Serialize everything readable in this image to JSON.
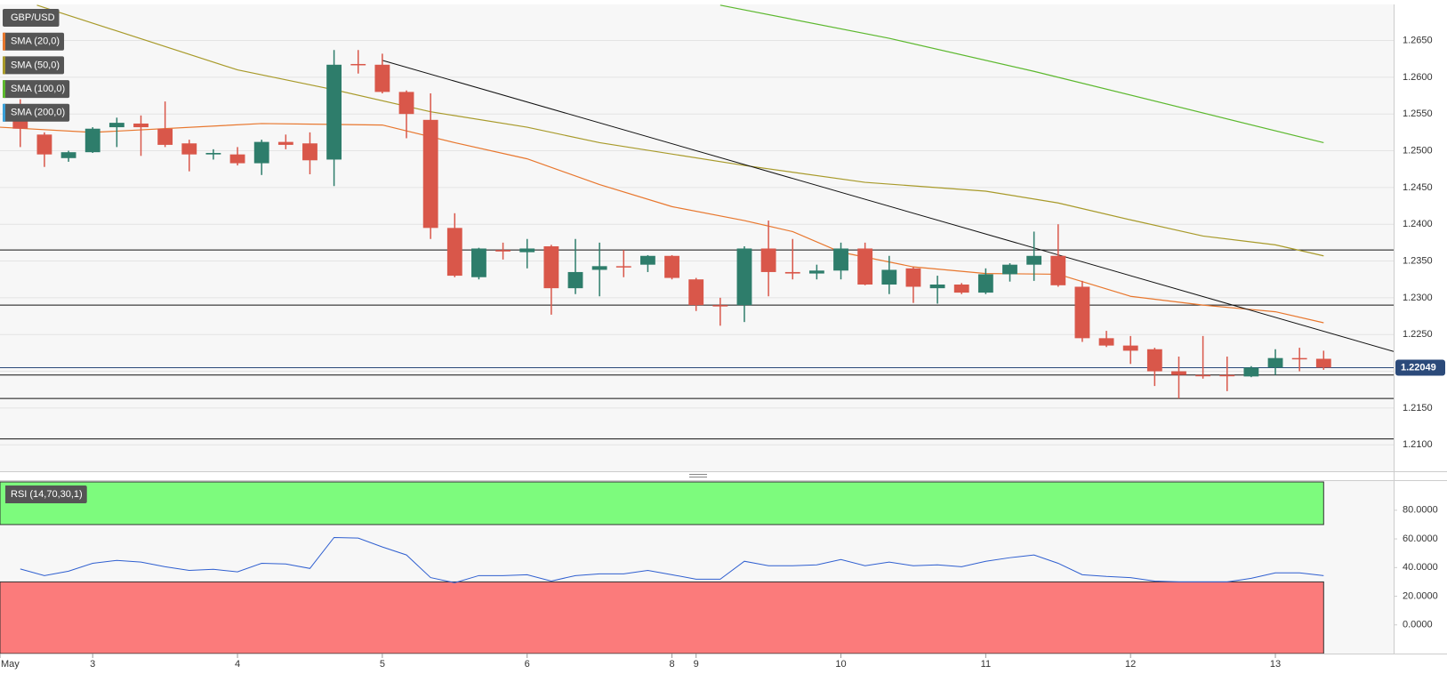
{
  "chart_data": [
    {
      "type": "candlestick",
      "title": "GBP/USD",
      "up_color": "#2e7d6b",
      "down_color": "#d9574a",
      "open": [
        1.256,
        1.2522,
        1.249,
        1.2498,
        1.2532,
        1.2537,
        1.253,
        1.251,
        1.2495,
        1.2495,
        1.2483,
        1.2512,
        1.251,
        1.2488,
        1.2618,
        1.2617,
        1.258,
        1.2542,
        1.2395,
        1.2328,
        1.2365,
        1.2362,
        1.237,
        1.2313,
        1.2338,
        1.2343,
        1.2345,
        1.2357,
        1.2325,
        1.229,
        1.229,
        1.2367,
        1.2335,
        1.2333,
        1.2337,
        1.2367,
        1.2318,
        1.234,
        1.2313,
        1.2318,
        1.2307,
        1.2332,
        1.2345,
        1.2357,
        1.2315,
        1.2245,
        1.2235,
        1.223,
        1.22,
        1.2195,
        1.2195,
        1.2193,
        1.2205,
        1.2218,
        1.2217
      ],
      "high": [
        1.257,
        1.2525,
        1.25,
        1.2532,
        1.2545,
        1.2548,
        1.2567,
        1.2515,
        1.2502,
        1.2505,
        1.2515,
        1.2522,
        1.2525,
        1.2637,
        1.2637,
        1.2632,
        1.2582,
        1.2578,
        1.2415,
        1.2368,
        1.2375,
        1.238,
        1.2372,
        1.238,
        1.2375,
        1.2365,
        1.2358,
        1.2358,
        1.2327,
        1.23,
        1.237,
        1.2405,
        1.238,
        1.2345,
        1.2375,
        1.2375,
        1.2357,
        1.2342,
        1.233,
        1.232,
        1.234,
        1.2347,
        1.239,
        1.24,
        1.2323,
        1.2255,
        1.2248,
        1.2232,
        1.222,
        1.2248,
        1.222,
        1.2207,
        1.223,
        1.2232,
        1.2228
      ],
      "low": [
        1.2505,
        1.2478,
        1.2485,
        1.2497,
        1.2505,
        1.2493,
        1.2505,
        1.2472,
        1.2488,
        1.248,
        1.2467,
        1.2502,
        1.2468,
        1.2452,
        1.2605,
        1.2578,
        1.2517,
        1.238,
        1.2328,
        1.2325,
        1.2352,
        1.234,
        1.2277,
        1.2305,
        1.2302,
        1.2328,
        1.2335,
        1.2325,
        1.2282,
        1.2262,
        1.2267,
        1.2302,
        1.2325,
        1.2325,
        1.2325,
        1.2317,
        1.2305,
        1.2293,
        1.2292,
        1.2305,
        1.2305,
        1.2322,
        1.2323,
        1.2315,
        1.224,
        1.2233,
        1.221,
        1.218,
        1.2163,
        1.219,
        1.2173,
        1.2192,
        1.2195,
        1.22,
        1.2202
      ],
      "close": [
        1.253,
        1.2495,
        1.2498,
        1.253,
        1.2538,
        1.2532,
        1.2508,
        1.2495,
        1.2497,
        1.2483,
        1.2512,
        1.2508,
        1.2487,
        1.2617,
        1.2617,
        1.258,
        1.255,
        1.2395,
        1.233,
        1.2367,
        1.2363,
        1.2367,
        1.2313,
        1.2335,
        1.2343,
        1.2343,
        1.2357,
        1.2327,
        1.229,
        1.229,
        1.2367,
        1.2335,
        1.2333,
        1.2337,
        1.2367,
        1.2318,
        1.2338,
        1.2315,
        1.2318,
        1.2307,
        1.2332,
        1.2345,
        1.2357,
        1.2317,
        1.2245,
        1.2235,
        1.2228,
        1.22,
        1.2195,
        1.2195,
        1.2195,
        1.2205,
        1.2218,
        1.2217,
        1.2205
      ],
      "indicators": [
        {
          "name": "SMA (20,0)",
          "color": "#e8772e",
          "x": [
            -0.84,
            3,
            10,
            15,
            18,
            21,
            24,
            27,
            30,
            32,
            34,
            37,
            40,
            43,
            46,
            49,
            52,
            54
          ],
          "values": [
            1.2532,
            1.2525,
            1.2537,
            1.2535,
            1.2511,
            1.2489,
            1.2454,
            1.2424,
            1.2405,
            1.239,
            1.2362,
            1.2342,
            1.2333,
            1.2332,
            1.2302,
            1.229,
            1.2281,
            1.2266
          ]
        },
        {
          "name": "SMA (50,0)",
          "color": "#a89a2a",
          "x": [
            0.69,
            9,
            13,
            17,
            21,
            24,
            30,
            35,
            40,
            43,
            46,
            49,
            52,
            54
          ],
          "values": [
            1.2698,
            1.261,
            1.2583,
            1.2553,
            1.2532,
            1.2511,
            1.248,
            1.2457,
            1.2445,
            1.2429,
            1.2406,
            1.2384,
            1.2372,
            1.2357
          ]
        },
        {
          "name": "SMA (100,0)",
          "color": "#5cb82e",
          "x": [
            29,
            36,
            42,
            54
          ],
          "values": [
            1.2698,
            1.2653,
            1.2608,
            1.2511
          ]
        },
        {
          "name": "SMA (200,0)",
          "color": "#3aa0d8"
        }
      ],
      "levels": [
        1.2365,
        1.229,
        1.2195,
        1.2163,
        1.2108
      ],
      "trendline": {
        "x": [
          15,
          56.9
        ],
        "values": [
          1.2623,
          1.2227
        ]
      },
      "last_price": {
        "value": 1.22049,
        "label": "1.22049"
      },
      "xlim": [
        -0.84,
        56.9
      ],
      "ylim": [
        1.2064,
        1.2699
      ],
      "yticks": [
        {
          "value": 1.21,
          "label": "1.2100"
        },
        {
          "value": 1.215,
          "label": "1.2150"
        },
        {
          "value": 1.22,
          "label": "1.2200"
        },
        {
          "value": 1.225,
          "label": "1.2250"
        },
        {
          "value": 1.23,
          "label": "1.2300"
        },
        {
          "value": 1.235,
          "label": "1.2350"
        },
        {
          "value": 1.24,
          "label": "1.2400"
        },
        {
          "value": 1.245,
          "label": "1.2450"
        },
        {
          "value": 1.25,
          "label": "1.2500"
        },
        {
          "value": 1.255,
          "label": "1.2550"
        },
        {
          "value": 1.26,
          "label": "1.2600"
        },
        {
          "value": 1.265,
          "label": "1.2650"
        }
      ],
      "grid": true
    },
    {
      "type": "line",
      "title": "RSI (14,70,30,1)",
      "color": "#2f5fd0",
      "values": [
        39,
        34.4,
        37.5,
        43,
        45,
        43.8,
        40.6,
        38,
        38.8,
        37,
        43,
        42.5,
        39.4,
        61,
        60.6,
        54.4,
        48.8,
        33,
        29.4,
        34.4,
        34.4,
        35,
        30.6,
        34.4,
        35.6,
        35.6,
        38,
        35,
        31.9,
        31.9,
        44.4,
        41.3,
        41.3,
        41.9,
        45.6,
        41.3,
        43.8,
        41.3,
        41.9,
        40.6,
        44.4,
        46.9,
        48.8,
        43,
        35,
        33.8,
        33,
        30.6,
        30,
        30,
        30,
        32.5,
        36.3,
        36.3,
        34.4
      ],
      "overbought": 70,
      "oversold": 30,
      "overbought_color": "#7dfb7d",
      "oversold_color": "#fb7b7b",
      "ylim": [
        -20,
        101
      ],
      "yticks": [
        {
          "value": 0,
          "label": "0.0000"
        },
        {
          "value": 20,
          "label": "20.0000"
        },
        {
          "value": 40,
          "label": "40.0000"
        },
        {
          "value": 60,
          "label": "60.0000"
        },
        {
          "value": 80,
          "label": "80.0000"
        }
      ],
      "xticks": [
        {
          "value": -0.84,
          "label": "May"
        },
        3,
        {
          "value": 9,
          "label": "4"
        },
        {
          "value": 15,
          "label": "5"
        },
        {
          "value": 21,
          "label": "6"
        },
        {
          "value": 27,
          "label": "8"
        },
        {
          "value": 28,
          "label": "9"
        },
        {
          "value": 34,
          "label": "10"
        },
        {
          "value": 40,
          "label": "11"
        },
        {
          "value": 46,
          "label": "12"
        },
        {
          "value": 52,
          "label": "13"
        }
      ]
    }
  ]
}
